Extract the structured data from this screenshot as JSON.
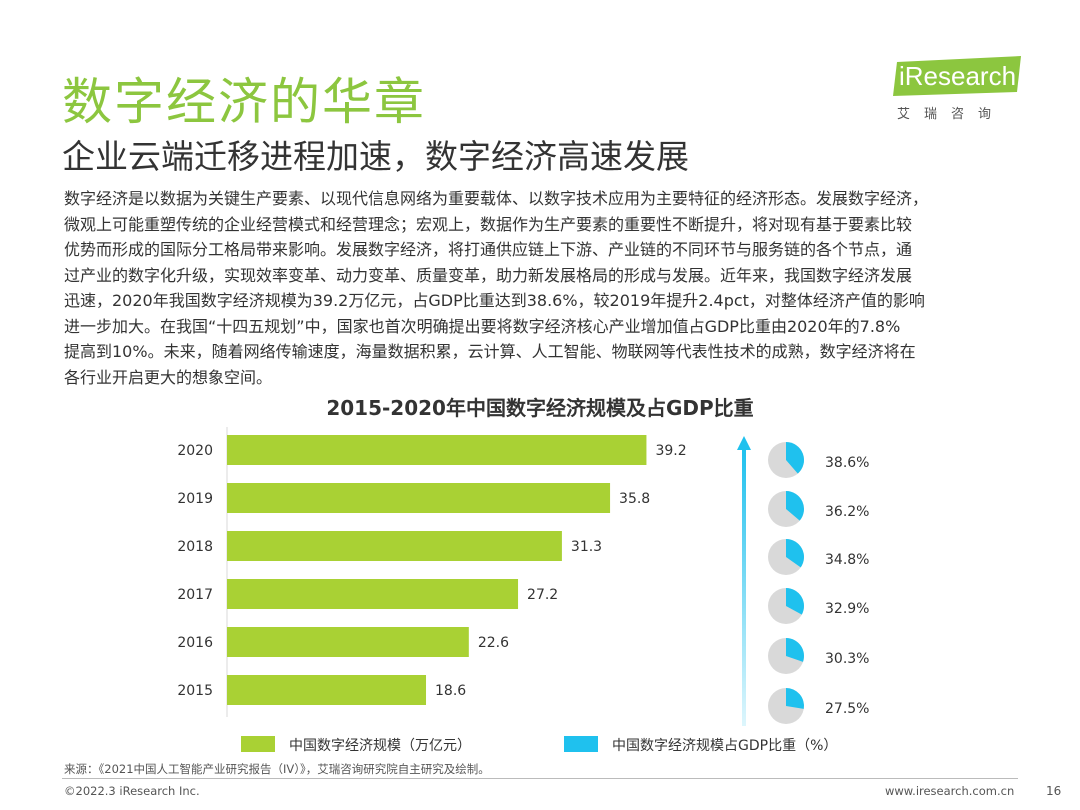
{
  "header": {
    "title": "数字经济的华章",
    "subtitle": "企业云端迁移进程加速，数字经济高速发展"
  },
  "logo": {
    "brand": "iResearch",
    "cn": "艾瑞咨询",
    "color": "#8cc63f"
  },
  "body": {
    "lines": [
      "数字经济是以数据为关键生产要素、以现代信息网络为重要载体、以数字技术应用为主要特征的经济形态。发展数字经济，",
      "微观上可能重塑传统的企业经营模式和经营理念；宏观上，数据作为生产要素的重要性不断提升，将对现有基于要素比较",
      "优势而形成的国际分工格局带来影响。发展数字经济，将打通供应链上下游、产业链的不同环节与服务链的各个节点，通",
      "过产业的数字化升级，实现效率变革、动力变革、质量变革，助力新发展格局的形成与发展。近年来，我国数字经济发展",
      "迅速，2020年我国数字经济规模为39.2万亿元，占GDP比重达到38.6%，较2019年提升2.4pct，对整体经济产值的影响",
      "进一步加大。在我国“十四五规划”中，国家也首次明确提出要将数字经济核心产业增加值占GDP比重由2020年的7.8%",
      "提高到10%。未来，随着网络传输速度，海量数据积累，云计算、人工智能、物联网等代表性技术的成熟，数字经济将在",
      "各行业开启更大的想象空间。"
    ]
  },
  "chart_data": {
    "type": "bar",
    "orientation": "horizontal",
    "title": "2015-2020年中国数字经济规模及占GDP比重",
    "categories": [
      "2020",
      "2019",
      "2018",
      "2017",
      "2016",
      "2015"
    ],
    "series": [
      {
        "name": "中国数字经济规模（万亿元）",
        "values": [
          39.2,
          35.8,
          31.3,
          27.2,
          22.6,
          18.6
        ],
        "labels": [
          "39.2",
          "35.8",
          "31.3",
          "27.2",
          "22.6",
          "18.6"
        ],
        "color": "#a9d134"
      },
      {
        "name": "中国数字经济规模占GDP比重（%）",
        "type": "pie",
        "values": [
          38.6,
          36.2,
          34.8,
          32.9,
          30.3,
          27.5
        ],
        "labels": [
          "38.6%",
          "36.2%",
          "34.8%",
          "32.9%",
          "30.3%",
          "27.5%"
        ],
        "color": "#1fc1ee",
        "rest_color": "#d9d9d9"
      }
    ],
    "xlim": [
      0,
      45
    ],
    "grid": false,
    "legend": "bottom",
    "arrow_color": "#1fc1ee"
  },
  "legend": {
    "bar_label": "中国数字经济规模（万亿元）",
    "pie_label": "中国数字经济规模占GDP比重（%）"
  },
  "footer": {
    "source": "来源：《2021中国人工智能产业研究报告（IV）》，艾瑞咨询研究院自主研究及绘制。",
    "copyright": "©2022.3 iResearch Inc.",
    "site": "www.iresearch.com.cn",
    "page": "16"
  }
}
